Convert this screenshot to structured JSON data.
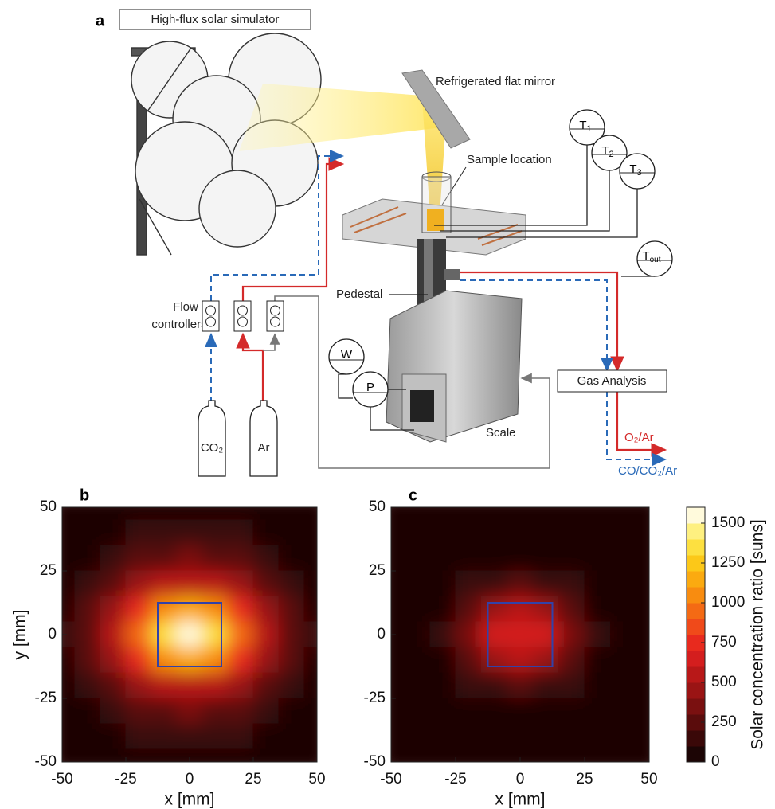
{
  "panel_a": {
    "letter": "a",
    "title": "High-flux solar simulator",
    "labels": {
      "mirror": "Refrigerated flat mirror",
      "sample": "Sample location",
      "pedestal": "Pedestal",
      "flow": [
        "Flow",
        "controllers"
      ],
      "scale": "Scale",
      "gas": "Gas Analysis",
      "o2": "O₂/Ar",
      "co": "CO/CO₂/Ar",
      "co2_bottle": "CO₂",
      "ar_bottle": "Ar"
    },
    "gauges": [
      {
        "label": "T",
        "sub": "1"
      },
      {
        "label": "T",
        "sub": "2"
      },
      {
        "label": "T",
        "sub": "3"
      },
      {
        "label": "T",
        "sub": "out"
      },
      {
        "label": "W"
      },
      {
        "label": "P"
      }
    ]
  },
  "colorbar": {
    "label": "Solar concentration ratio [suns]",
    "lim": [
      0,
      1600
    ],
    "ticks": [
      0,
      250,
      500,
      750,
      1000,
      1250,
      1500
    ],
    "colors": [
      "#1c0505",
      "#3a0808",
      "#5a0c0c",
      "#7a1010",
      "#9a1414",
      "#b81818",
      "#d41e1e",
      "#e82a1e",
      "#f04a1a",
      "#f46a14",
      "#f88c10",
      "#fbaa10",
      "#fcc818",
      "#fde040",
      "#fef080",
      "#fffadc"
    ]
  },
  "chart_data": [
    {
      "type": "contour",
      "panel": "b",
      "xlabel": "x [mm]",
      "ylabel": "y [mm]",
      "x": [
        -50,
        -40,
        -30,
        -20,
        -10,
        0,
        10,
        20,
        30,
        40,
        50
      ],
      "y": [
        50,
        40,
        30,
        20,
        10,
        0,
        -10,
        -20,
        -30,
        -40,
        -50
      ],
      "z": [
        [
          40,
          40,
          50,
          60,
          70,
          70,
          70,
          60,
          50,
          40,
          40
        ],
        [
          40,
          50,
          80,
          120,
          150,
          160,
          150,
          120,
          80,
          50,
          40
        ],
        [
          50,
          90,
          160,
          230,
          290,
          310,
          290,
          230,
          160,
          90,
          50
        ],
        [
          70,
          150,
          280,
          420,
          540,
          580,
          540,
          420,
          280,
          150,
          70
        ],
        [
          90,
          220,
          420,
          700,
          1000,
          1150,
          1000,
          700,
          420,
          220,
          90
        ],
        [
          100,
          260,
          520,
          900,
          1350,
          1550,
          1350,
          900,
          520,
          260,
          100
        ],
        [
          90,
          220,
          420,
          700,
          1000,
          1150,
          1000,
          700,
          420,
          220,
          90
        ],
        [
          70,
          150,
          280,
          420,
          540,
          580,
          540,
          420,
          280,
          150,
          70
        ],
        [
          50,
          90,
          160,
          230,
          290,
          310,
          290,
          230,
          160,
          90,
          50
        ],
        [
          40,
          50,
          80,
          120,
          150,
          160,
          150,
          120,
          80,
          50,
          40
        ],
        [
          40,
          40,
          50,
          60,
          70,
          70,
          70,
          60,
          50,
          40,
          40
        ]
      ],
      "xlim": [
        -50,
        50
      ],
      "ylim": [
        -50,
        50
      ],
      "xticks": [
        -50,
        -25,
        0,
        25,
        50
      ],
      "yticks": [
        -50,
        -25,
        0,
        25,
        50
      ],
      "box": {
        "x": [
          -12.5,
          12.5
        ],
        "y": [
          -12.5,
          12.5
        ],
        "color": "#3242a8"
      }
    },
    {
      "type": "contour",
      "panel": "c",
      "xlabel": "x [mm]",
      "x": [
        -50,
        -40,
        -30,
        -20,
        -10,
        0,
        10,
        20,
        30,
        40,
        50
      ],
      "y": [
        50,
        40,
        30,
        20,
        10,
        0,
        -10,
        -20,
        -30,
        -40,
        -50
      ],
      "z": [
        [
          20,
          20,
          20,
          20,
          20,
          20,
          20,
          20,
          20,
          20,
          20
        ],
        [
          20,
          20,
          20,
          30,
          40,
          40,
          40,
          30,
          20,
          20,
          20
        ],
        [
          20,
          20,
          40,
          60,
          80,
          90,
          80,
          60,
          40,
          20,
          20
        ],
        [
          20,
          30,
          60,
          110,
          180,
          210,
          180,
          110,
          60,
          30,
          20
        ],
        [
          20,
          40,
          90,
          250,
          450,
          520,
          450,
          250,
          90,
          40,
          20
        ],
        [
          20,
          50,
          120,
          350,
          600,
          650,
          600,
          350,
          120,
          50,
          20
        ],
        [
          20,
          40,
          90,
          250,
          450,
          520,
          450,
          250,
          90,
          40,
          20
        ],
        [
          20,
          30,
          60,
          110,
          180,
          210,
          180,
          110,
          60,
          30,
          20
        ],
        [
          20,
          20,
          40,
          60,
          80,
          90,
          80,
          60,
          40,
          20,
          20
        ],
        [
          20,
          20,
          20,
          30,
          40,
          40,
          40,
          30,
          20,
          20,
          20
        ],
        [
          20,
          20,
          20,
          20,
          20,
          20,
          20,
          20,
          20,
          20,
          20
        ]
      ],
      "xlim": [
        -50,
        50
      ],
      "ylim": [
        -50,
        50
      ],
      "xticks": [
        -50,
        -25,
        0,
        25,
        50
      ],
      "yticks": [
        -50,
        -25,
        0,
        25,
        50
      ],
      "box": {
        "x": [
          -12.5,
          12.5
        ],
        "y": [
          -12.5,
          12.5
        ],
        "color": "#3242a8"
      }
    }
  ]
}
